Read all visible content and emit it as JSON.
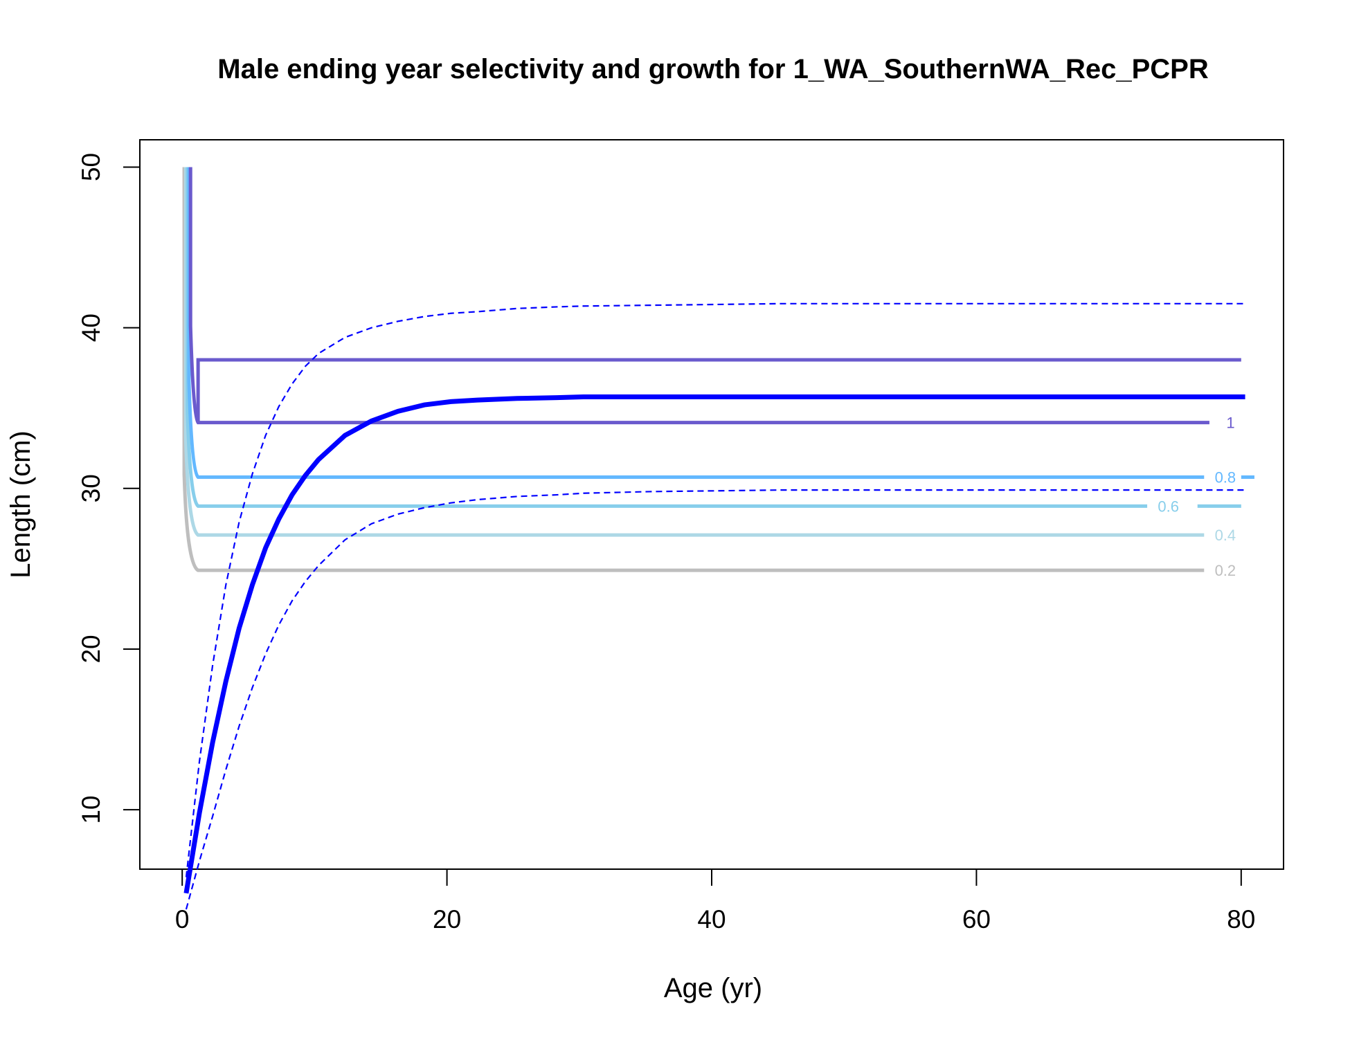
{
  "chart_data": {
    "type": "line",
    "title": "Male ending year selectivity and growth for 1_WA_SouthernWA_Rec_PCPR",
    "xlabel": "Age (yr)",
    "ylabel": "Length (cm)",
    "xlim": [
      -3.2,
      83.2
    ],
    "ylim": [
      6.3,
      51.7
    ],
    "x_ticks": [
      0,
      20,
      40,
      60,
      80
    ],
    "x_tick_labels": [
      "0",
      "20",
      "40",
      "60",
      "80"
    ],
    "y_ticks": [
      10,
      20,
      30,
      40,
      50
    ],
    "y_tick_labels": [
      "10",
      "20",
      "30",
      "40",
      "50"
    ],
    "growth": {
      "age": [
        0,
        1,
        2,
        3,
        4,
        5,
        6,
        7,
        8,
        9,
        10,
        12,
        14,
        16,
        18,
        20,
        22,
        25,
        28,
        30,
        35,
        40,
        45,
        50,
        60,
        70,
        80
      ],
      "mean_length": [
        4.8,
        9.8,
        14.2,
        18.0,
        21.3,
        24.0,
        26.3,
        28.1,
        29.6,
        30.8,
        31.8,
        33.3,
        34.2,
        34.8,
        35.2,
        35.4,
        35.5,
        35.6,
        35.65,
        35.7,
        35.7,
        35.7,
        35.7,
        35.7,
        35.7,
        35.7,
        35.7
      ],
      "upper_length": [
        5.8,
        13.0,
        19.0,
        24.0,
        27.9,
        30.9,
        33.3,
        35.1,
        36.5,
        37.6,
        38.4,
        39.4,
        40.0,
        40.4,
        40.7,
        40.9,
        41.0,
        41.2,
        41.3,
        41.35,
        41.4,
        41.45,
        41.5,
        41.5,
        41.5,
        41.5,
        41.5
      ],
      "lower_length": [
        3.8,
        6.8,
        9.6,
        12.5,
        15.2,
        17.6,
        19.7,
        21.5,
        23.0,
        24.2,
        25.2,
        26.8,
        27.8,
        28.4,
        28.8,
        29.1,
        29.3,
        29.5,
        29.6,
        29.7,
        29.8,
        29.85,
        29.9,
        29.9,
        29.9,
        29.9,
        29.9
      ]
    },
    "selectivity_contours": [
      {
        "level": "0.2",
        "length": 24.9,
        "label_age": 78.8,
        "color": "#bebebe"
      },
      {
        "level": "0.4",
        "length": 27.1,
        "label_age": 78.8,
        "color": "#add8e6"
      },
      {
        "level": "0.6",
        "length": 28.9,
        "label_age": 74.5,
        "color": "#87ceeb"
      },
      {
        "level": "0.8",
        "length": 30.7,
        "label_age": 78.8,
        "color": "#63b8ff"
      },
      {
        "level": "1",
        "length": 34.1,
        "label_age": 79.2,
        "color": "#6a5acd"
      },
      {
        "level": "",
        "length": 38.0,
        "label_age": null,
        "color": "#6a5acd"
      }
    ],
    "growth_color": "#0000ff"
  }
}
